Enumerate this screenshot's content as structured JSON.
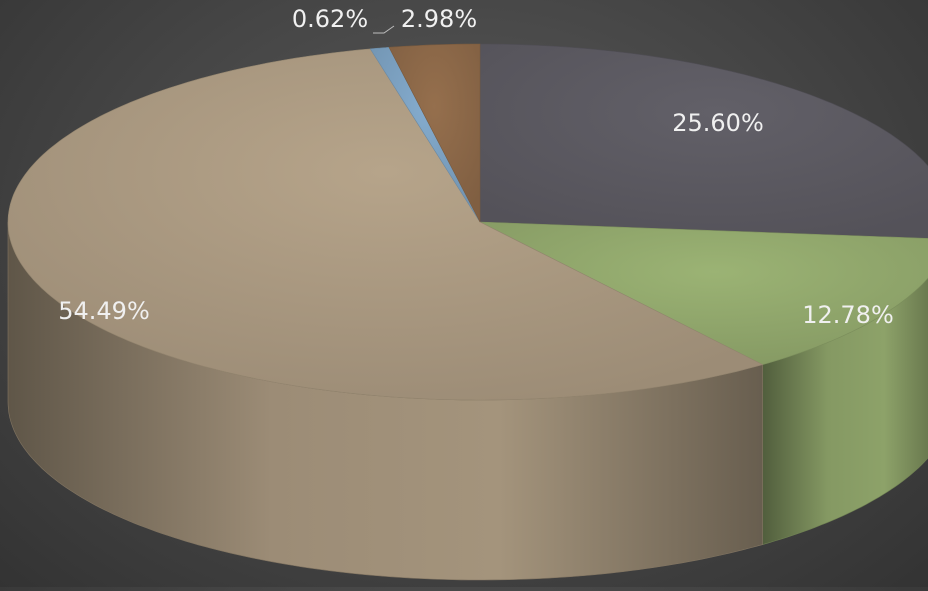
{
  "chart_data": {
    "type": "pie",
    "style": "3d",
    "title": "",
    "slices": [
      {
        "value": 25.6,
        "label": "25.60%",
        "color": "#5d5b63"
      },
      {
        "value": 12.78,
        "label": "12.78%",
        "color": "#94aa6e"
      },
      {
        "value": 54.49,
        "label": "54.49%",
        "color": "#ad9c83"
      },
      {
        "value": 0.62,
        "label": "0.62%",
        "color": "#7ea3c3"
      },
      {
        "value": 2.98,
        "label": "2.98%",
        "color": "#8e6a49"
      }
    ],
    "label_color": "#f0f0f0",
    "legend": "none"
  }
}
